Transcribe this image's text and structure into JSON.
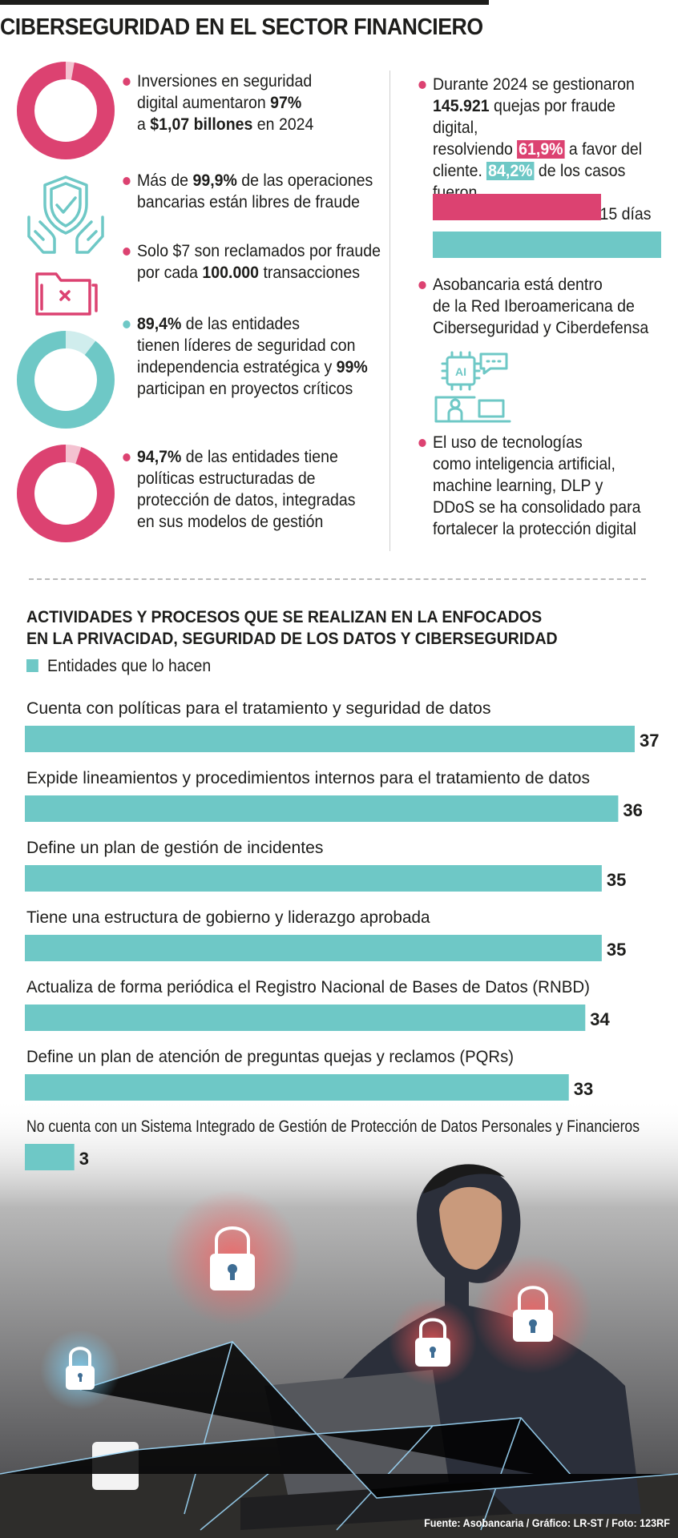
{
  "title": "CIBERSEGURIDAD EN EL SECTOR FINANCIERO",
  "colors": {
    "pink": "#dc4271",
    "teal": "#6ec8c6",
    "text": "#1d1d1b"
  },
  "donuts": [
    {
      "name": "inversion",
      "percent": 97,
      "color": "#dc4271"
    },
    {
      "name": "lideres",
      "percent": 89.4,
      "color": "#6ec8c6"
    },
    {
      "name": "politicas",
      "percent": 94.7,
      "color": "#dc4271"
    }
  ],
  "icons": [
    "shield-hands-icon",
    "folder-error-icon",
    "ai-laptop-icon"
  ],
  "left_facts": {
    "f1": {
      "a": "Inversiones en seguridad",
      "b": "digital aumentaron ",
      "b_bold": "97%",
      "c": "a ",
      "c_bold": "$1,07 billones",
      "c_end": " en 2024"
    },
    "f2": {
      "a": "Más de ",
      "a_bold": "99,9%",
      "a_end": " de las operaciones",
      "b": "bancarias están libres de fraude"
    },
    "f3": {
      "a": "Solo $7 son reclamados por fraude",
      "b": "por cada ",
      "b_bold": "100.000",
      "b_end": " transacciones"
    },
    "f4": {
      "a_bold": "89,4%",
      "a": " de las entidades",
      "b": "tienen líderes de seguridad con",
      "c": "independencia estratégica y ",
      "c_bold": "99%",
      "d": "participan en proyectos críticos"
    },
    "f5": {
      "a_bold": "94,7%",
      "a": " de las entidades tiene",
      "b": "políticas estructuradas de",
      "c": "protección de datos, integradas",
      "d": "en sus modelos de gestión"
    }
  },
  "right_facts": {
    "f1": {
      "a": "Durante 2024 se gestionaron",
      "b_bold": "145.921",
      "b": " quejas por fraude digital,",
      "c": "resolviendo ",
      "c_hl": "61,9%",
      "c_end": " a favor del",
      "d": "cliente. ",
      "d_hl": "84,2%",
      "d_end": " de los casos fueron",
      "e": "atendidos en menos de 15 días"
    },
    "f2": {
      "a": "Asobancaria está dentro",
      "b": "de la Red Iberoamericana de",
      "c": "Ciberseguridad y Ciberdefensa"
    },
    "f3": {
      "a": "El uso de tecnologías",
      "b": "como inteligencia artificial,",
      "c": "machine learning, DLP y",
      "d": "DDoS se ha consolidado para",
      "e": "fortalecer la protección digital"
    }
  },
  "fraud_bars": [
    {
      "name": "resueltos-a-favor",
      "percent": 61.9,
      "color": "#dc4271"
    },
    {
      "name": "atendidos-15-dias",
      "percent": 84.2,
      "color": "#6ec8c6"
    }
  ],
  "chart_title_line1": "ACTIVIDADES Y PROCESOS QUE SE REALIZAN EN LA ENFOCADOS",
  "chart_title_line2": "EN LA PRIVACIDAD, SEGURIDAD DE LOS DATOS Y CIBERSEGURIDAD",
  "chart_data": {
    "type": "bar",
    "orientation": "horizontal",
    "title": "ACTIVIDADES Y PROCESOS QUE SE REALIZAN EN LA ENFOCADOS EN LA PRIVACIDAD, SEGURIDAD DE LOS DATOS Y CIBERSEGURIDAD",
    "categories": [
      "Cuenta con políticas para el tratamiento y seguridad de datos",
      "Expide lineamientos y procedimientos internos para el tratamiento de datos",
      "Define un plan de gestión de incidentes",
      "Tiene una estructura de gobierno y liderazgo aprobada",
      "Actualiza de forma periódica el Registro Nacional de Bases de Datos (RNBD)",
      "Define un plan de atención de preguntas quejas y reclamos (PQRs)",
      "No cuenta con un Sistema Integrado de Gestión de Protección de Datos Personales y Financieros"
    ],
    "series": [
      {
        "name": "Entidades que lo hacen",
        "values": [
          37,
          36,
          35,
          35,
          34,
          33,
          3
        ],
        "color": "#6ec8c6"
      }
    ],
    "xlim": [
      0,
      37
    ],
    "legend": "top-left",
    "grid": false
  },
  "credit": "Fuente: Asobancaria / Gráfico: LR-ST / Foto: 123RF"
}
